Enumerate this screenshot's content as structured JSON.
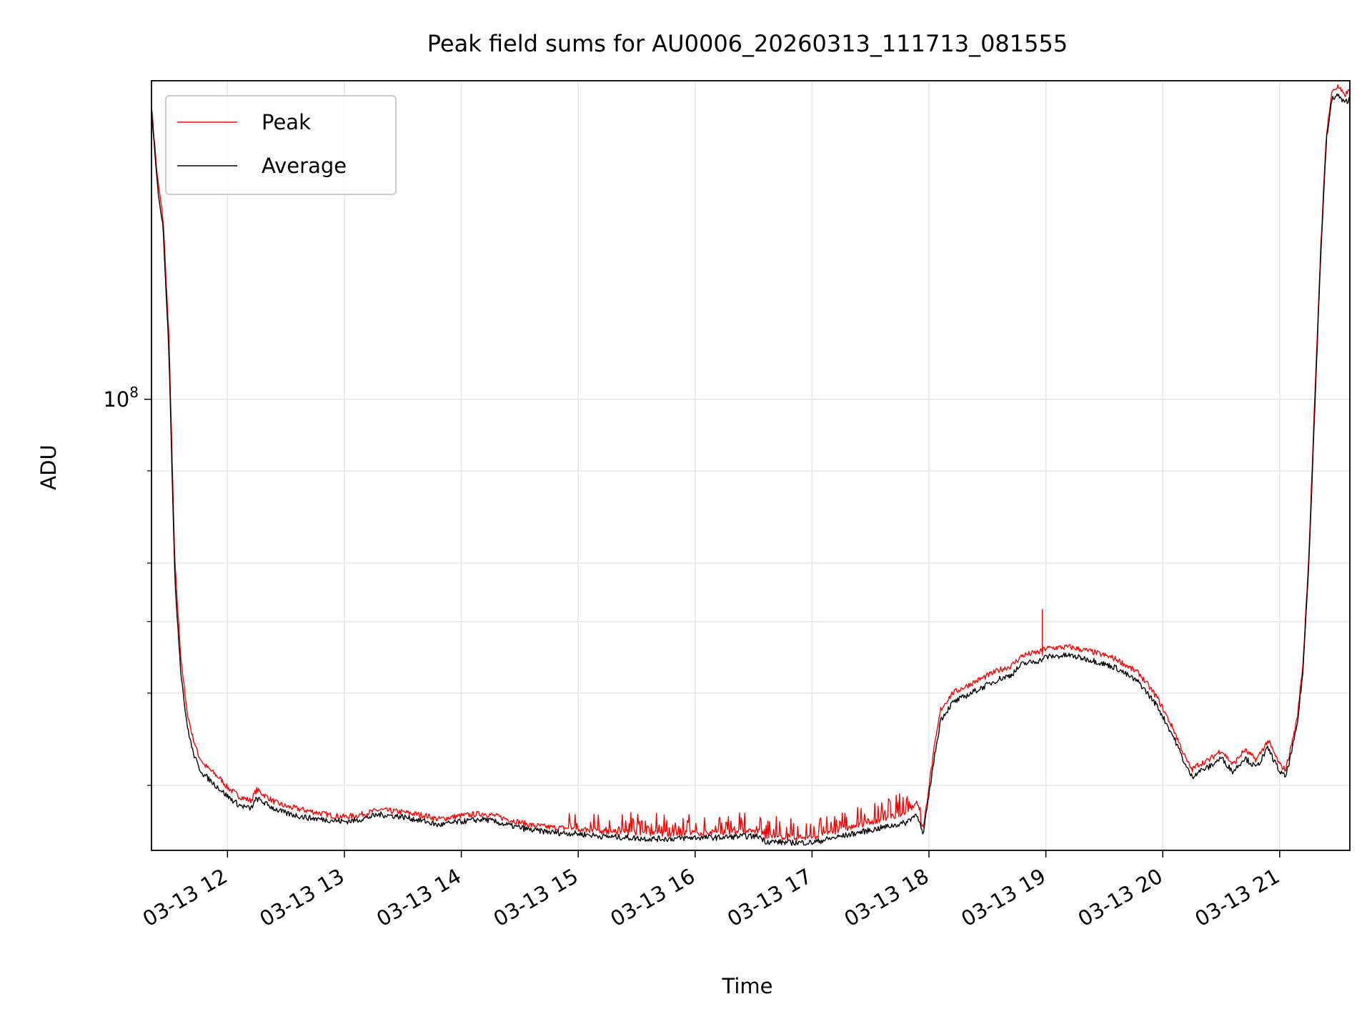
{
  "chart_data": {
    "type": "line",
    "title": "Peak field sums for AU0006_20260313_111713_081555",
    "xlabel": "Time",
    "ylabel": "ADU",
    "yscale": "log",
    "xlim": [
      11.35,
      21.6
    ],
    "ylim": [
      24500000,
      270000000
    ],
    "grid": true,
    "legend_position": "top-left",
    "x_ticks": [
      {
        "value": 12,
        "label": "03-13 12"
      },
      {
        "value": 13,
        "label": "03-13 13"
      },
      {
        "value": 14,
        "label": "03-13 14"
      },
      {
        "value": 15,
        "label": "03-13 15"
      },
      {
        "value": 16,
        "label": "03-13 16"
      },
      {
        "value": 17,
        "label": "03-13 17"
      },
      {
        "value": 18,
        "label": "03-13 18"
      },
      {
        "value": 19,
        "label": "03-13 19"
      },
      {
        "value": 20,
        "label": "03-13 20"
      },
      {
        "value": 21,
        "label": "03-13 21"
      }
    ],
    "y_major_ticks": [
      {
        "value": 100000000,
        "base": "10",
        "exponent": "8"
      }
    ],
    "y_minor_ticks": [
      30000000,
      40000000,
      50000000,
      60000000,
      80000000
    ],
    "series": [
      {
        "name": "Peak",
        "color": "#ff0000",
        "x": [
          11.35,
          11.4,
          11.45,
          11.5,
          11.55,
          11.6,
          11.65,
          11.7,
          11.75,
          11.8,
          11.85,
          11.9,
          11.95,
          12.0,
          12.1,
          12.2,
          12.25,
          12.4,
          12.5,
          12.7,
          12.9,
          13.0,
          13.1,
          13.3,
          13.5,
          13.7,
          13.8,
          14.0,
          14.2,
          14.4,
          14.6,
          14.8,
          15.0,
          15.2,
          15.4,
          15.6,
          15.8,
          16.0,
          16.2,
          16.4,
          16.55,
          16.6,
          16.8,
          17.0,
          17.2,
          17.4,
          17.6,
          17.8,
          17.9,
          17.95,
          18.0,
          18.05,
          18.1,
          18.2,
          18.4,
          18.6,
          18.7,
          18.8,
          18.95,
          19.0,
          19.2,
          19.4,
          19.6,
          19.8,
          19.95,
          20.1,
          20.2,
          20.25,
          20.3,
          20.4,
          20.5,
          20.6,
          20.7,
          20.8,
          20.9,
          21.0,
          21.05,
          21.1,
          21.15,
          21.2,
          21.25,
          21.3,
          21.35,
          21.4,
          21.45,
          21.5,
          21.55,
          21.6
        ],
        "y": [
          250000000,
          200000000,
          175000000,
          120000000,
          60000000,
          45000000,
          38000000,
          35000000,
          33000000,
          32000000,
          31500000,
          31000000,
          30500000,
          29800000,
          29000000,
          28600000,
          29600000,
          28500000,
          28100000,
          27700000,
          27300000,
          27200000,
          27300000,
          27800000,
          27600000,
          27300000,
          27000000,
          27300000,
          27500000,
          27000000,
          26500000,
          26300000,
          26200000,
          26000000,
          25900000,
          25800000,
          25800000,
          25900000,
          25900000,
          26000000,
          26000000,
          25600000,
          25500000,
          25500000,
          26000000,
          26500000,
          27000000,
          27500000,
          28500000,
          26000000,
          30000000,
          34000000,
          38000000,
          40000000,
          41500000,
          43000000,
          43500000,
          45000000,
          45500000,
          46000000,
          46200000,
          45500000,
          44500000,
          42500000,
          39500000,
          35500000,
          32500000,
          31500000,
          32000000,
          32500000,
          33500000,
          32000000,
          33500000,
          32500000,
          34500000,
          32000000,
          31500000,
          34000000,
          37000000,
          44000000,
          62000000,
          100000000,
          160000000,
          230000000,
          262000000,
          265000000,
          258000000,
          262000000
        ]
      },
      {
        "name": "Average",
        "color": "#000000",
        "x": [
          11.35,
          11.4,
          11.45,
          11.5,
          11.55,
          11.6,
          11.65,
          11.7,
          11.75,
          11.8,
          11.85,
          11.9,
          11.95,
          12.0,
          12.1,
          12.2,
          12.25,
          12.4,
          12.5,
          12.7,
          12.9,
          13.0,
          13.1,
          13.3,
          13.5,
          13.7,
          13.8,
          14.0,
          14.2,
          14.4,
          14.6,
          14.8,
          15.0,
          15.2,
          15.4,
          15.6,
          15.8,
          16.0,
          16.2,
          16.4,
          16.55,
          16.6,
          16.8,
          17.0,
          17.2,
          17.4,
          17.6,
          17.8,
          17.9,
          17.95,
          18.0,
          18.05,
          18.1,
          18.2,
          18.4,
          18.6,
          18.7,
          18.8,
          18.95,
          19.0,
          19.2,
          19.4,
          19.6,
          19.8,
          19.95,
          20.1,
          20.2,
          20.25,
          20.3,
          20.4,
          20.5,
          20.6,
          20.7,
          20.8,
          20.9,
          21.0,
          21.05,
          21.1,
          21.15,
          21.2,
          21.25,
          21.3,
          21.35,
          21.4,
          21.45,
          21.5,
          21.55,
          21.6
        ],
        "y": [
          245000000,
          195000000,
          170000000,
          115000000,
          57000000,
          43000000,
          36500000,
          33500000,
          31800000,
          31000000,
          30500000,
          30000000,
          29500000,
          29000000,
          28200000,
          27900000,
          28800000,
          27900000,
          27500000,
          27100000,
          26900000,
          26800000,
          26900000,
          27400000,
          27200000,
          26800000,
          26500000,
          26800000,
          27000000,
          26500000,
          26100000,
          25900000,
          25800000,
          25600000,
          25500000,
          25400000,
          25400000,
          25500000,
          25500000,
          25600000,
          25600000,
          25200000,
          25100000,
          25100000,
          25500000,
          25900000,
          26300000,
          26700000,
          27500000,
          25600000,
          29200000,
          33000000,
          36800000,
          38800000,
          40300000,
          41800000,
          42300000,
          43800000,
          44300000,
          44800000,
          45000000,
          44300000,
          43300000,
          41300000,
          38500000,
          34700000,
          31800000,
          30800000,
          31300000,
          31800000,
          32700000,
          31300000,
          32700000,
          31700000,
          33700000,
          31300000,
          30800000,
          33200000,
          36200000,
          43000000,
          60500000,
          97000000,
          156000000,
          225000000,
          256000000,
          258000000,
          252000000,
          255000000
        ]
      }
    ],
    "spike": {
      "x": 18.97,
      "peak_y": 52000000,
      "base_y": 45000000
    }
  }
}
